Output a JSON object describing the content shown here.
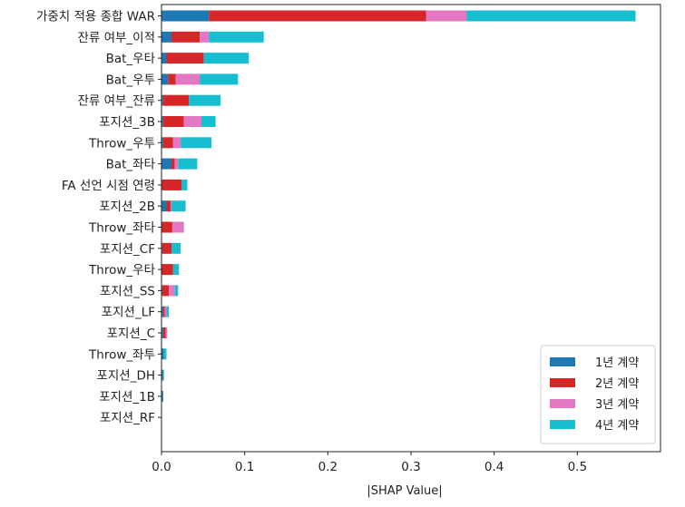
{
  "chart_data": {
    "type": "bar",
    "orientation": "horizontal",
    "stacked": true,
    "xlabel": "|SHAP Value|",
    "xlim": [
      0,
      0.6
    ],
    "xticks": [
      "0.0",
      "0.1",
      "0.2",
      "0.3",
      "0.4",
      "0.5"
    ],
    "xtick_values": [
      0,
      0.1,
      0.2,
      0.3,
      0.4,
      0.5
    ],
    "grid": false,
    "legend_position": "bottom-right",
    "categories": [
      "가중치 적용 종합 WAR",
      "잔류 여부_이적",
      "Bat_우타",
      "Bat_우투",
      "잔류 여부_잔류",
      "포지션_3B",
      "Throw_우투",
      "Bat_좌타",
      "FA 선언 시점 연령",
      "포지션_2B",
      "Throw_좌타",
      "포지션_CF",
      "Throw_우타",
      "포지션_SS",
      "포지션_LF",
      "포지션_C",
      "Throw_좌투",
      "포지션_DH",
      "포지션_1B",
      "포지션_RF"
    ],
    "series": [
      {
        "name": "1년 계약",
        "color": "#1f77b4",
        "values": [
          0.057,
          0.012,
          0.006,
          0.008,
          0.002,
          0.002,
          0.002,
          0.012,
          0.0,
          0.006,
          0.0,
          0.001,
          0.0,
          0.001,
          0.002,
          0.002,
          0.003,
          0.002,
          0.002,
          0.0
        ]
      },
      {
        "name": "2년 계약",
        "color": "#d62728",
        "values": [
          0.261,
          0.034,
          0.045,
          0.009,
          0.031,
          0.025,
          0.012,
          0.004,
          0.024,
          0.005,
          0.013,
          0.011,
          0.014,
          0.008,
          0.002,
          0.003,
          0.0,
          0.0,
          0.0,
          0.0
        ]
      },
      {
        "name": "3년 계약",
        "color": "#e377c2",
        "values": [
          0.049,
          0.011,
          0.0,
          0.029,
          0.0,
          0.021,
          0.009,
          0.004,
          0.0,
          0.001,
          0.014,
          0.0,
          0.0,
          0.007,
          0.002,
          0.002,
          0.0,
          0.0,
          0.0,
          0.0
        ]
      },
      {
        "name": "4년 계약",
        "color": "#17becf",
        "values": [
          0.203,
          0.066,
          0.054,
          0.046,
          0.038,
          0.017,
          0.037,
          0.023,
          0.007,
          0.017,
          0.0,
          0.011,
          0.007,
          0.004,
          0.003,
          0.0,
          0.003,
          0.001,
          0.0,
          0.0
        ]
      }
    ]
  }
}
